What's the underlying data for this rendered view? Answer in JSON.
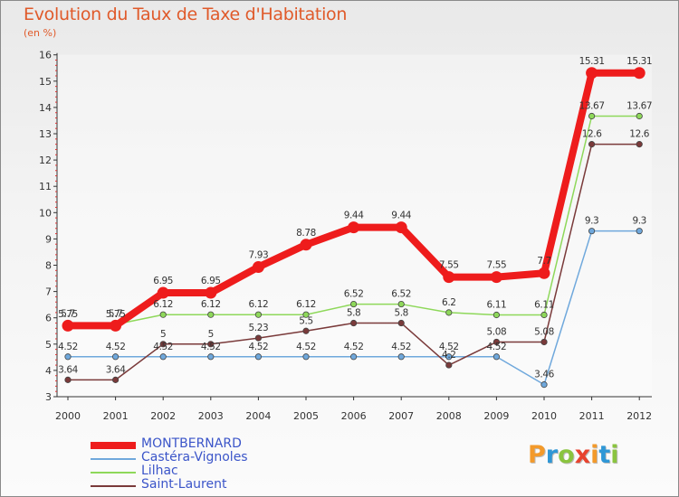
{
  "title": "Evolution du Taux de Taxe d'Habitation",
  "subtitle": "(en %)",
  "logo": {
    "text": "Proxiti",
    "letters": [
      {
        "ch": "P",
        "color": "#f39a2b"
      },
      {
        "ch": "r",
        "color": "#2f97d6"
      },
      {
        "ch": "o",
        "color": "#8ac43f"
      },
      {
        "ch": "x",
        "color": "#e8432f"
      },
      {
        "ch": "i",
        "color": "#f39a2b"
      },
      {
        "ch": "t",
        "color": "#2f97d6"
      },
      {
        "ch": "i",
        "color": "#8ac43f"
      }
    ]
  },
  "chart_data": {
    "type": "line",
    "title": "Evolution du Taux de Taxe d'Habitation",
    "ylabel": "(en %)",
    "ylim": [
      3,
      16
    ],
    "yticks": [
      "3",
      "4",
      "5",
      "6",
      "7",
      "8",
      "9",
      "10",
      "11",
      "12",
      "13",
      "14",
      "15",
      "16"
    ],
    "x": [
      "2000",
      "2001",
      "2002",
      "2003",
      "2004",
      "2005",
      "2006",
      "2007",
      "2008",
      "2009",
      "2010",
      "2011",
      "2012"
    ],
    "grid": false,
    "legend_position": "bottom-left",
    "series": [
      {
        "name": "MONTBERNARD",
        "color": "#ee1c1c",
        "values": [
          5.7,
          5.7,
          6.95,
          6.95,
          7.93,
          8.78,
          9.44,
          9.44,
          7.55,
          7.55,
          7.7,
          15.31,
          15.31
        ],
        "labels": [
          "5.7",
          "5.7",
          "6.95",
          "6.95",
          "7.93",
          "8.78",
          "9.44",
          "9.44",
          "7.55",
          "7.55",
          "7.7",
          "15.31",
          "15.31"
        ]
      },
      {
        "name": "Castéra-Vignoles",
        "color": "#6fa8dc",
        "values": [
          4.52,
          4.52,
          4.52,
          4.52,
          4.52,
          4.52,
          4.52,
          4.52,
          4.52,
          4.52,
          3.46,
          9.3,
          9.3
        ],
        "labels": [
          "4.52",
          "4.52",
          "4.52",
          "4.52",
          "4.52",
          "4.52",
          "4.52",
          "4.52",
          "4.52",
          "4.52",
          "3.46",
          "9.3",
          "9.3"
        ]
      },
      {
        "name": "Lilhac",
        "color": "#8ed85a",
        "values": [
          5.75,
          5.75,
          6.12,
          6.12,
          6.12,
          6.12,
          6.52,
          6.52,
          6.2,
          6.11,
          6.11,
          13.67,
          13.67
        ],
        "labels": [
          "5.75",
          "5.75",
          "6.12",
          "6.12",
          "6.12",
          "6.12",
          "6.52",
          "6.52",
          "6.2",
          "6.11",
          "6.11",
          "13.67",
          "13.67"
        ]
      },
      {
        "name": "Saint-Laurent",
        "color": "#7a3a3a",
        "values": [
          3.64,
          3.64,
          5,
          5,
          5.23,
          5.5,
          5.8,
          5.8,
          4.2,
          5.08,
          5.08,
          12.6,
          12.6
        ],
        "labels": [
          "3.64",
          "3.64",
          "5",
          "5",
          "5.23",
          "5.5",
          "5.8",
          "5.8",
          "4.2",
          "5.08",
          "5.08",
          "12.6",
          "12.6"
        ]
      }
    ]
  }
}
